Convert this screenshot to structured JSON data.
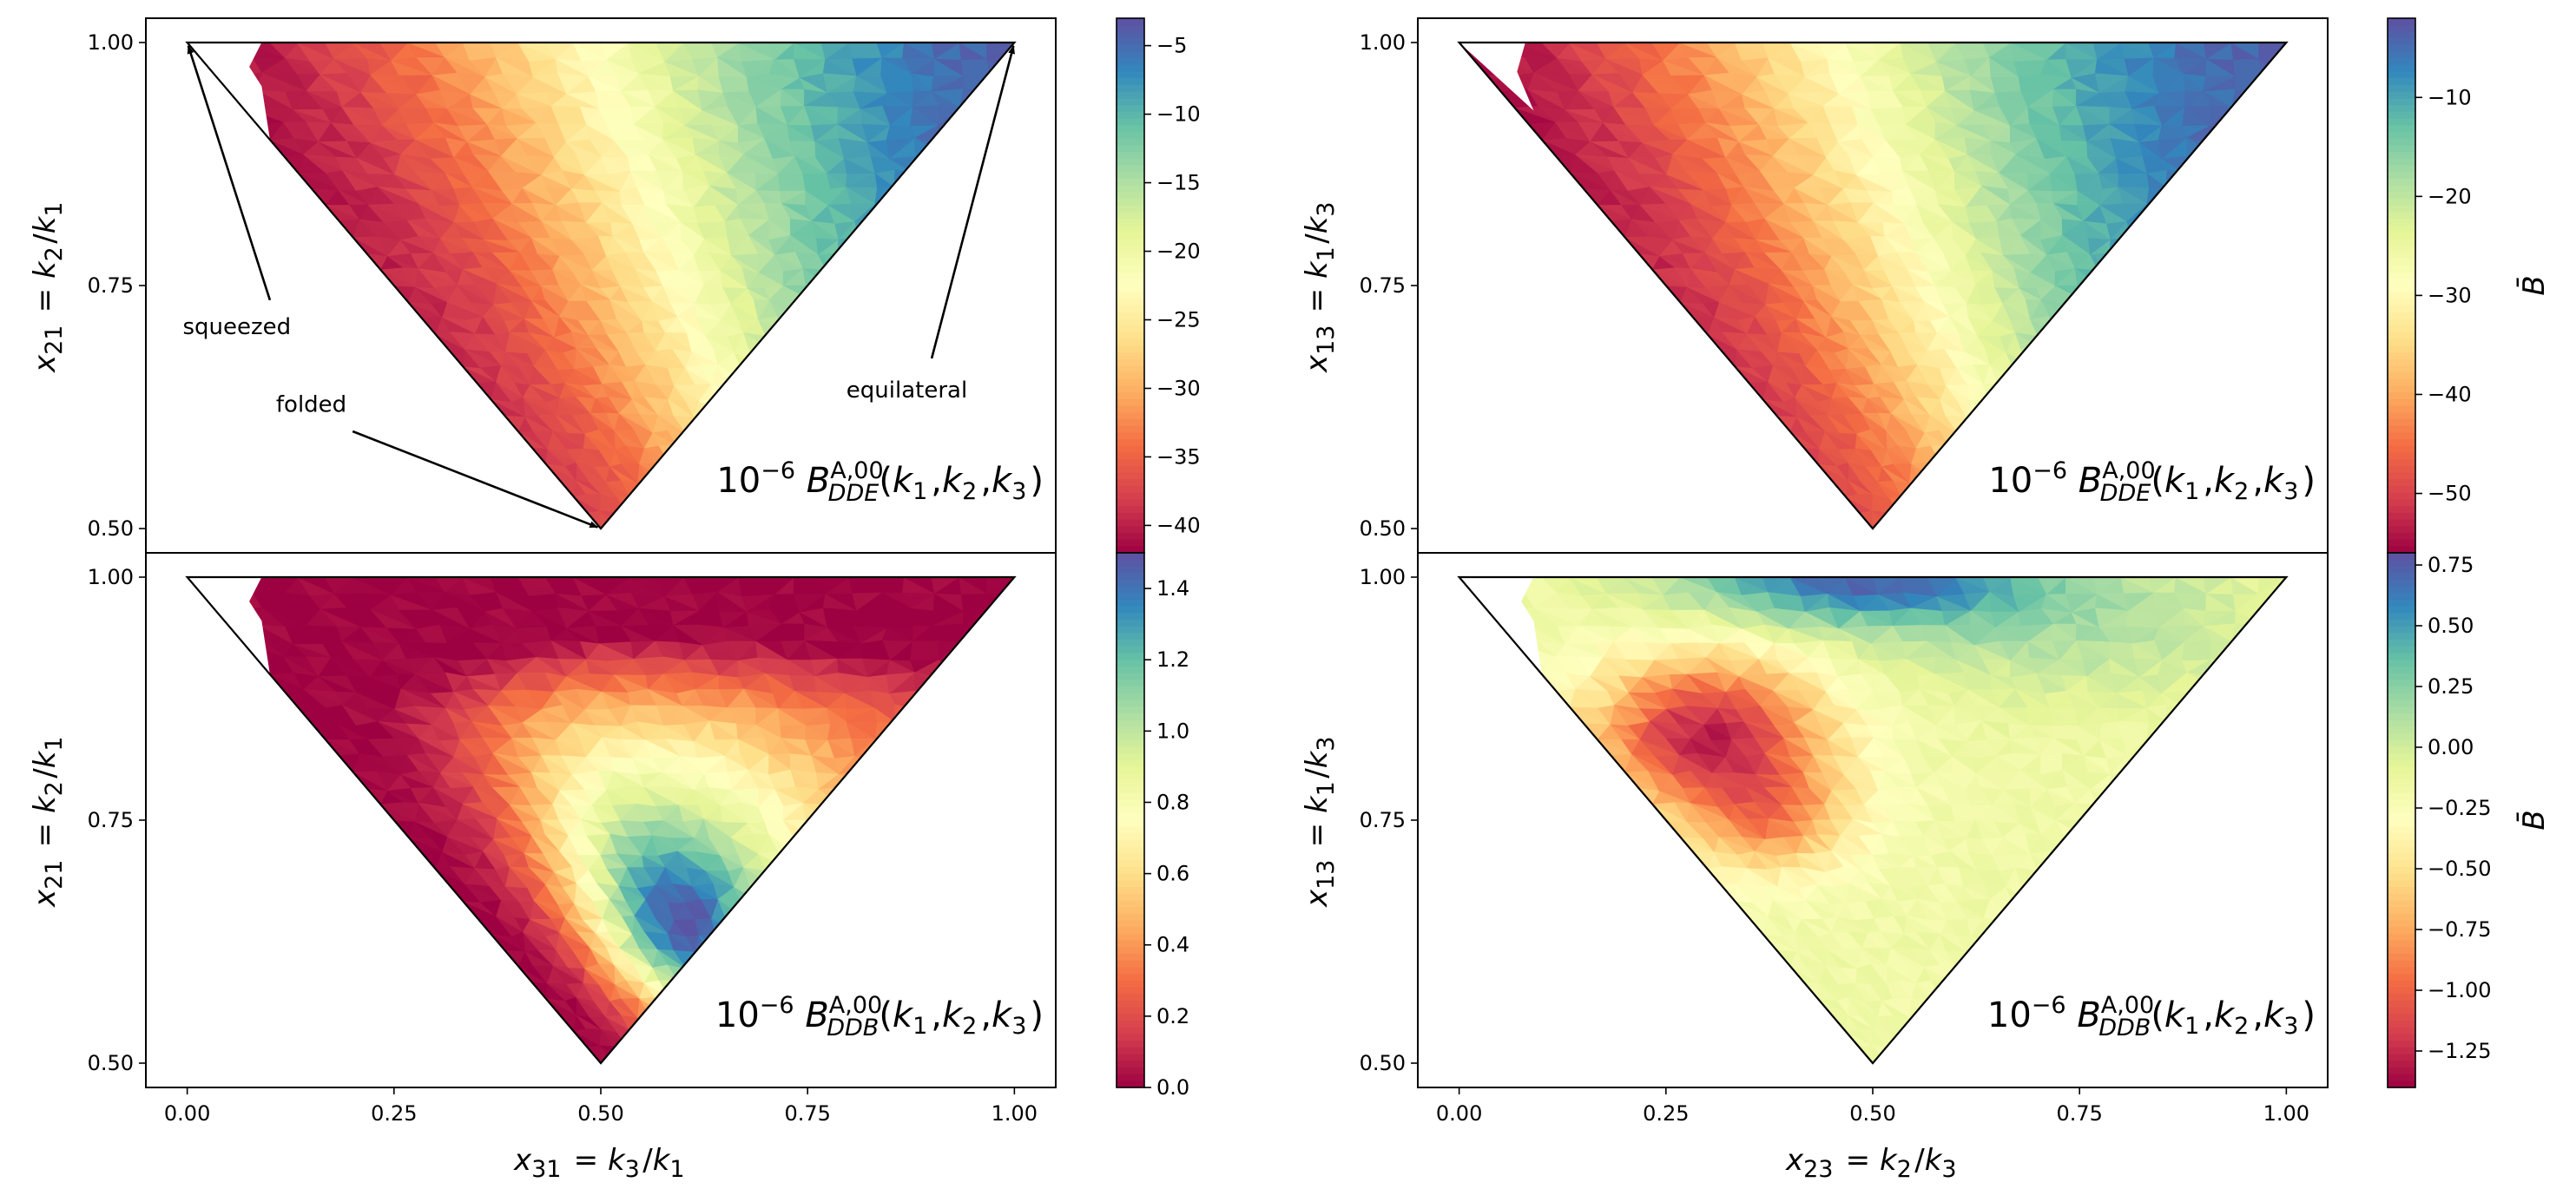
{
  "chart_data": [
    {
      "type": "heatmap",
      "id": "tl",
      "xlabel": "x_{31} = k_3/k_1",
      "ylabel": "x_{21} = k_2/k_1",
      "label": "10^{-6} B^{A,00}_{DDE}(k_1,k_2,k_3)",
      "xticks": [
        "0.00",
        "0.25",
        "0.50",
        "0.75",
        "1.00"
      ],
      "yticks": [
        "0.50",
        "0.75",
        "1.00"
      ],
      "xlim": [
        -0.05,
        1.05
      ],
      "ylim": [
        0.475,
        1.025
      ],
      "colorbar": {
        "range": [
          -42,
          -3
        ],
        "ticks": [
          "-5",
          "-10",
          "-15",
          "-20",
          "-25",
          "-30",
          "-35",
          "-40"
        ],
        "tick_values": [
          -5,
          -10,
          -15,
          -20,
          -25,
          -30,
          -35,
          -40
        ],
        "label": ""
      },
      "pattern": "gradient from folded edge (most negative, about -42) to equilateral corner (about -3)",
      "annotations": [
        {
          "text": "squeezed",
          "points_to": [
            0.0,
            1.0
          ]
        },
        {
          "text": "folded",
          "points_to": [
            0.5,
            0.5
          ]
        },
        {
          "text": "equilateral",
          "points_to": [
            1.0,
            1.0
          ]
        }
      ]
    },
    {
      "type": "heatmap",
      "id": "tr",
      "xlabel": "x_{23} = k_2/k_3",
      "ylabel": "x_{13} = k_1/k_3",
      "label": "10^{-6} B^{A,00}_{DDE}(k_1,k_2,k_3)",
      "xticks": [
        "0.00",
        "0.25",
        "0.50",
        "0.75",
        "1.00"
      ],
      "yticks": [
        "0.50",
        "0.75",
        "1.00"
      ],
      "xlim": [
        -0.05,
        1.05
      ],
      "ylim": [
        0.475,
        1.025
      ],
      "colorbar": {
        "range": [
          -56,
          -2
        ],
        "ticks": [
          "-10",
          "-20",
          "-30",
          "-40",
          "-50"
        ],
        "tick_values": [
          -10,
          -20,
          -30,
          -40,
          -50
        ],
        "label": "B̄"
      },
      "pattern": "gradient from folded edge (about -56) to top-right corner (about -2)"
    },
    {
      "type": "heatmap",
      "id": "bl",
      "xlabel": "x_{31} = k_3/k_1",
      "ylabel": "x_{21} = k_2/k_1",
      "label": "10^{-6} B^{A,00}_{DDB}(k_1,k_2,k_3)",
      "xticks": [
        "0.00",
        "0.25",
        "0.50",
        "0.75",
        "1.00"
      ],
      "yticks": [
        "0.50",
        "0.75",
        "1.00"
      ],
      "xlim": [
        -0.05,
        1.05
      ],
      "ylim": [
        0.475,
        1.025
      ],
      "colorbar": {
        "range": [
          0.0,
          1.5
        ],
        "ticks": [
          "0.0",
          "0.2",
          "0.4",
          "0.6",
          "0.8",
          "1.0",
          "1.2",
          "1.4"
        ],
        "tick_values": [
          0.0,
          0.2,
          0.4,
          0.6,
          0.8,
          1.0,
          1.2,
          1.4
        ],
        "label": ""
      },
      "pattern": "near 0 along squeezed/left edge and top, maximum about 1.5 near (0.58, 0.62)"
    },
    {
      "type": "heatmap",
      "id": "br",
      "xlabel": "x_{23} = k_2/k_3",
      "ylabel": "x_{13} = k_1/k_3",
      "label": "10^{-6} B^{A,00}_{DDB}(k_1,k_2,k_3)",
      "xticks": [
        "0.00",
        "0.25",
        "0.50",
        "0.75",
        "1.00"
      ],
      "yticks": [
        "0.50",
        "0.75",
        "1.00"
      ],
      "xlim": [
        -0.05,
        1.05
      ],
      "ylim": [
        0.475,
        1.025
      ],
      "colorbar": {
        "range": [
          -1.4,
          0.8
        ],
        "ticks": [
          "0.75",
          "0.50",
          "0.25",
          "0.00",
          "-0.25",
          "-0.50",
          "-0.75",
          "-1.00",
          "-1.25"
        ],
        "tick_values": [
          0.75,
          0.5,
          0.25,
          0.0,
          -0.25,
          -0.5,
          -0.75,
          -1.0,
          -1.25
        ],
        "label": "B̄"
      },
      "pattern": "minimum about -1.4 near (0.28, 0.85), maximum about 0.8 along the top edge near x 0.45"
    }
  ]
}
